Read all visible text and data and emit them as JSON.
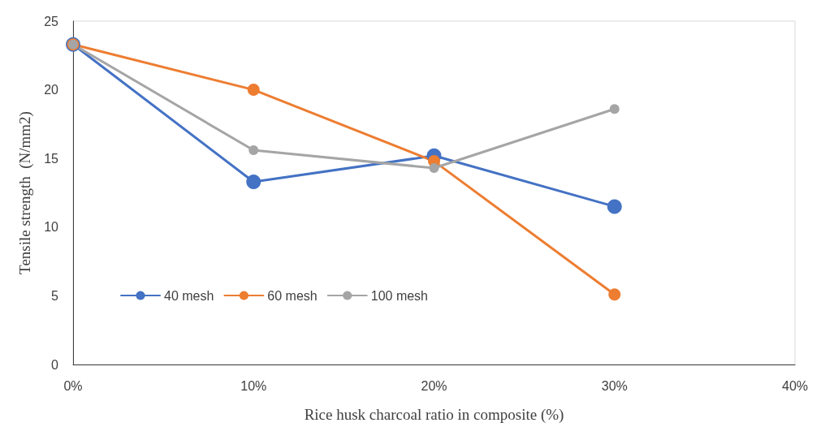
{
  "chart_data": {
    "type": "line",
    "xlabel": "Rice husk charcoal ratio in composite (%)",
    "ylabel": "Tensile strength  (N/mm2)",
    "x": [
      0,
      10,
      20,
      30
    ],
    "series": [
      {
        "name": "40 mesh",
        "color": "#4472c4",
        "values": [
          23.3,
          13.3,
          15.2,
          11.5
        ]
      },
      {
        "name": "60 mesh",
        "color": "#ed7d31",
        "values": [
          23.3,
          20.0,
          14.8,
          5.1
        ]
      },
      {
        "name": "100 mesh",
        "color": "#a5a5a5",
        "values": [
          23.3,
          15.6,
          14.3,
          18.6
        ]
      }
    ],
    "xlim": [
      0,
      40
    ],
    "xticks": [
      {
        "value": 0,
        "label": "0%"
      },
      {
        "value": 10,
        "label": "10%"
      },
      {
        "value": 20,
        "label": "20%"
      },
      {
        "value": 30,
        "label": "30%"
      },
      {
        "value": 40,
        "label": "40%"
      }
    ],
    "ylim": [
      0,
      25
    ],
    "yticks": [
      0,
      5,
      10,
      15,
      20,
      25
    ],
    "grid": false,
    "legend": "left",
    "marker": "circle",
    "line_style": "solid"
  }
}
